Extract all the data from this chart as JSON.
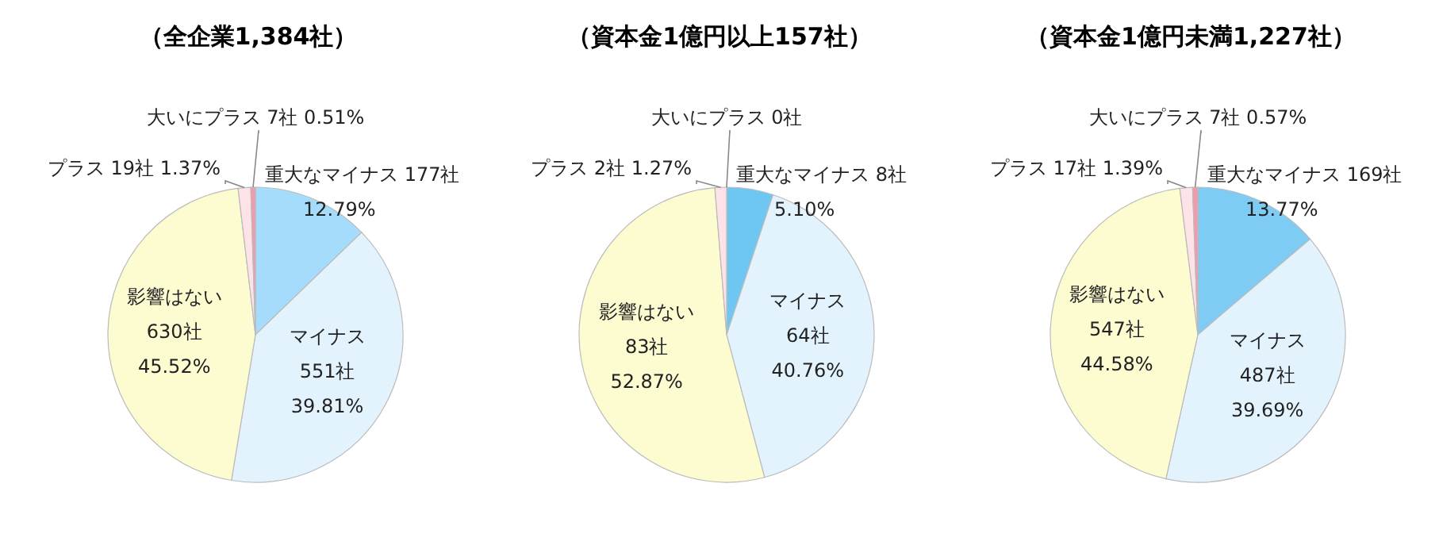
{
  "chart_data": [
    {
      "type": "pie",
      "title": "（全企業1,384社）",
      "categories": [
        "重大なマイナス",
        "マイナス",
        "影響はない",
        "プラス",
        "大いにプラス"
      ],
      "values": [
        177,
        551,
        630,
        19,
        7
      ],
      "colors": [
        "#a6dcfb",
        "#e3f3fd",
        "#fdfbd0",
        "#fde3e8",
        "#f29aab"
      ],
      "value_labels": [
        "177社 12.79%",
        "551社 39.81%",
        "630社 45.52%",
        "19社 1.37%",
        "7社 0.51%"
      ],
      "legend": false
    },
    {
      "type": "pie",
      "title": "（資本金1億円以上157社）",
      "categories": [
        "重大なマイナス",
        "マイナス",
        "影響はない",
        "プラス",
        "大いにプラス"
      ],
      "values": [
        8,
        64,
        83,
        2,
        0
      ],
      "colors": [
        "#6ec6f3",
        "#e3f3fd",
        "#fdfbd0",
        "#fde3e8",
        "#f29aab"
      ],
      "value_labels": [
        "8社 5.10%",
        "64社 40.76%",
        "83社 52.87%",
        "2社 1.27%",
        "0社"
      ],
      "legend": false
    },
    {
      "type": "pie",
      "title": "（資本金1億円未満1,227社）",
      "categories": [
        "重大なマイナス",
        "マイナス",
        "影響はない",
        "プラス",
        "大いにプラス"
      ],
      "values": [
        169,
        487,
        547,
        17,
        7
      ],
      "colors": [
        "#7ecbf4",
        "#e3f3fd",
        "#fdfbd0",
        "#fde3e8",
        "#f29aab"
      ],
      "value_labels": [
        "169社 13.77%",
        "487社 39.69%",
        "547社 44.58%",
        "17社 1.39%",
        "7社 0.57%"
      ],
      "legend": false
    }
  ]
}
